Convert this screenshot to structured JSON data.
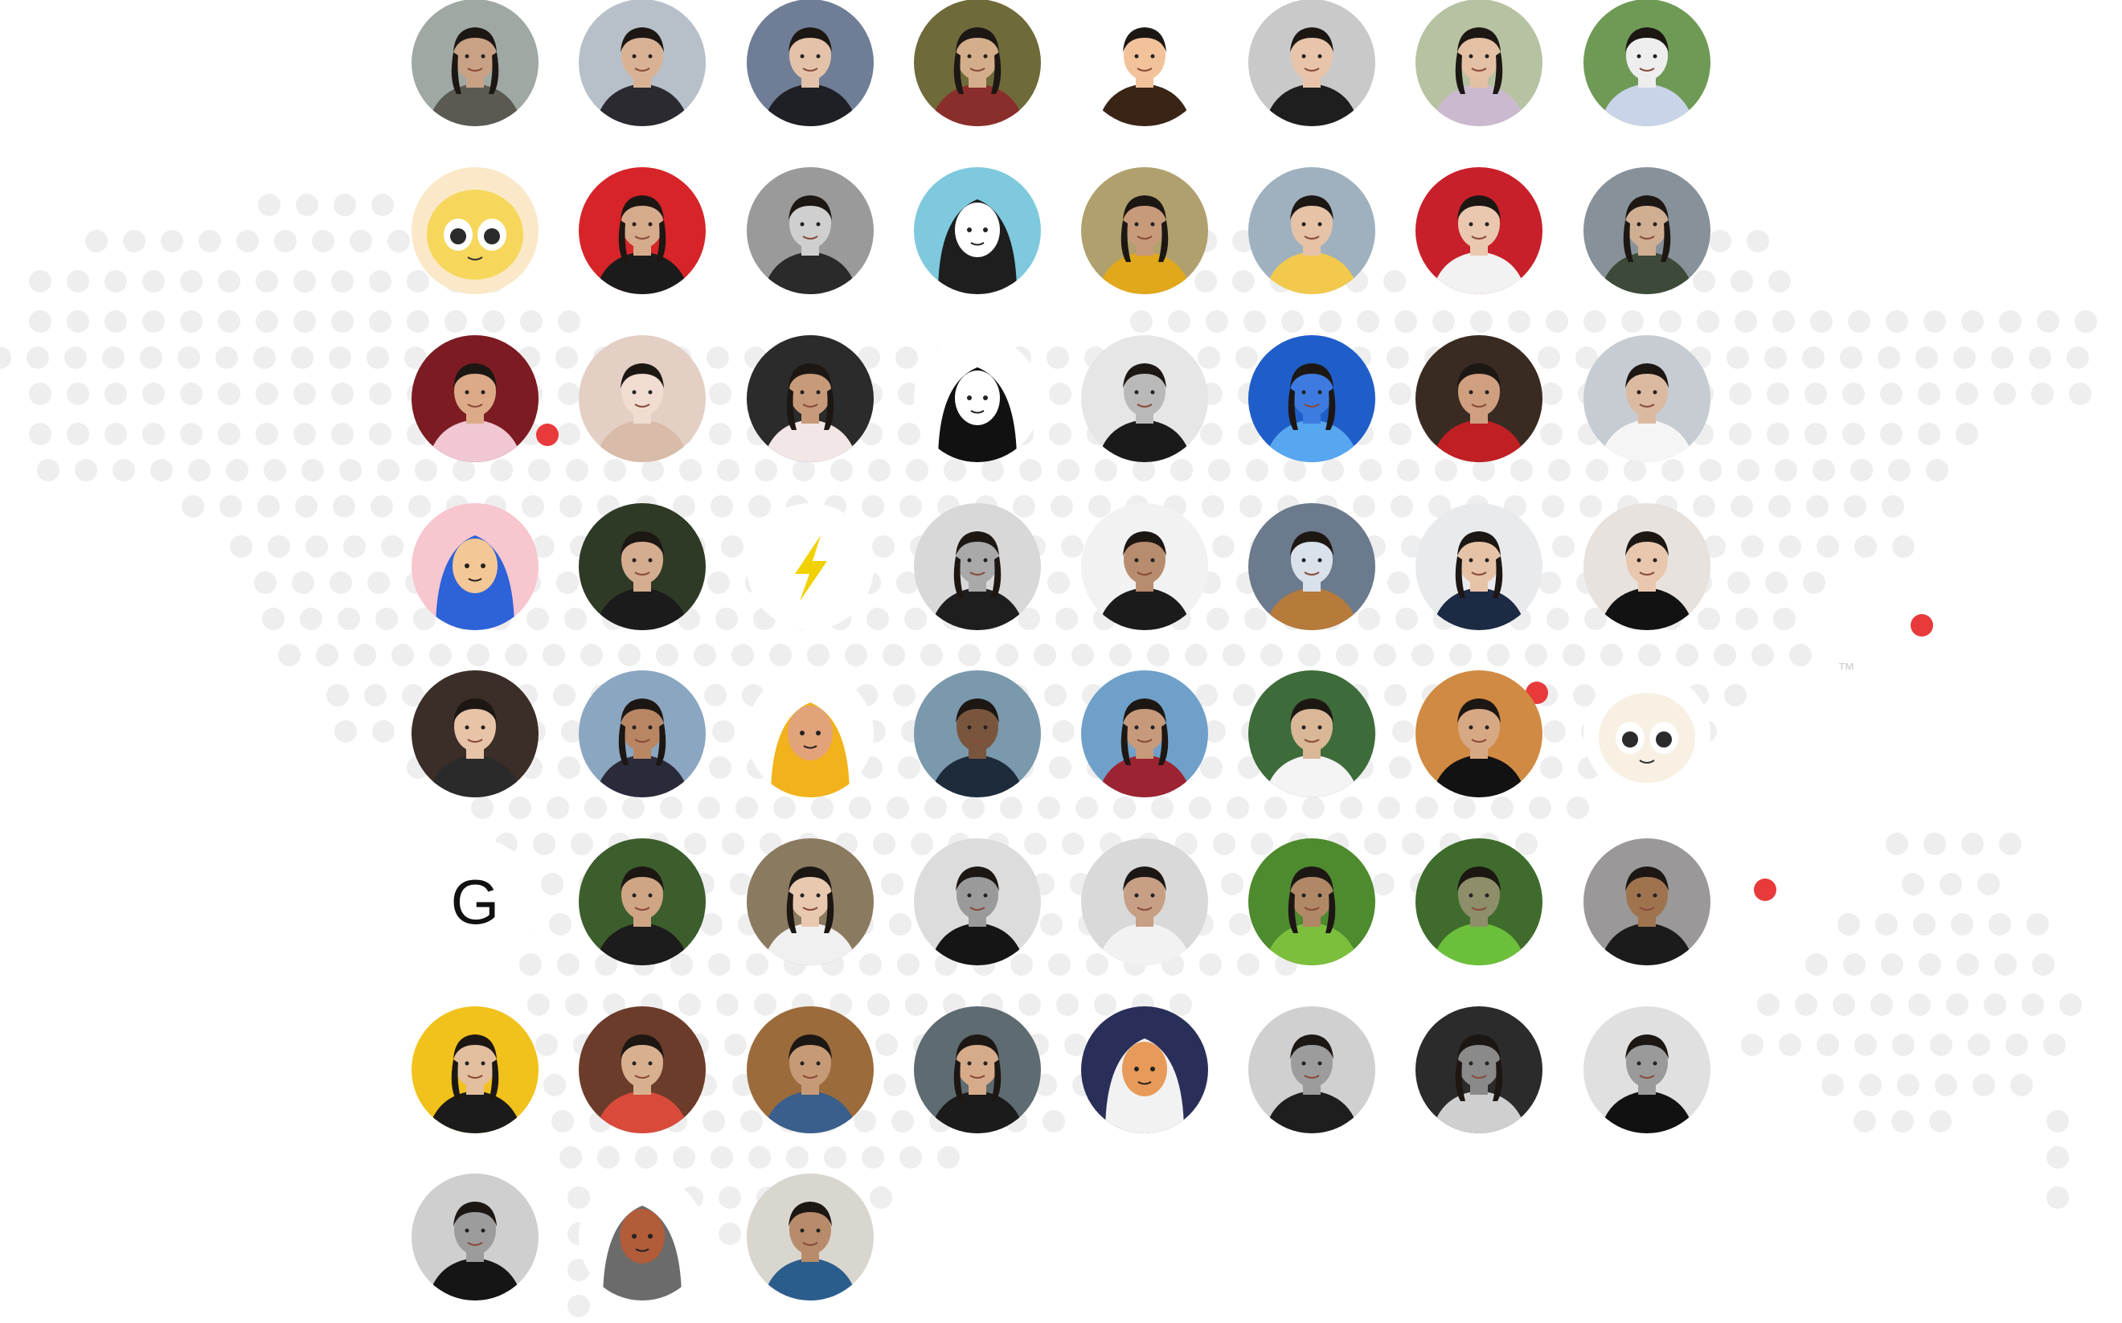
{
  "trademark": "™",
  "colors": {
    "map_dot": "#eeeeee",
    "highlight_dot": "#e83a3a"
  },
  "avatars": [
    {
      "name": "avatar-1",
      "style": "photo",
      "bg": "#9fa8a3",
      "fg": "#5a5a52",
      "skin": "#c9a286"
    },
    {
      "name": "avatar-2",
      "style": "photo",
      "bg": "#b7c0c8",
      "fg": "#2a2a30",
      "skin": "#d9b296"
    },
    {
      "name": "avatar-3",
      "style": "photo",
      "bg": "#6f7e96",
      "fg": "#1f1f26",
      "skin": "#e3c2a9"
    },
    {
      "name": "avatar-4",
      "style": "photo",
      "bg": "#6e6a3a",
      "fg": "#8a2e2b",
      "skin": "#d4ae8a"
    },
    {
      "name": "avatar-5",
      "style": "memoji",
      "bg": "#ffffff",
      "fg": "#3a2416",
      "skin": "#f2c29b"
    },
    {
      "name": "avatar-6",
      "style": "photo",
      "bg": "#c9c9c9",
      "fg": "#1e1e1e",
      "skin": "#e8c4aa"
    },
    {
      "name": "avatar-7",
      "style": "photo",
      "bg": "#b7c2a2",
      "fg": "#cbb9cf",
      "skin": "#e4c0a5"
    },
    {
      "name": "avatar-8",
      "style": "photo",
      "bg": "#6f9a56",
      "fg": "#c9d4e8",
      "skin": "#eeeeee"
    },
    {
      "name": "avatar-9",
      "style": "cartoon",
      "bg": "#fbe8c8",
      "fg": "#f6d75b",
      "skin": "#2b2b2b"
    },
    {
      "name": "avatar-10",
      "style": "photo",
      "bg": "#d62429",
      "fg": "#1b1b1b",
      "skin": "#d6ab8c"
    },
    {
      "name": "avatar-11",
      "style": "photo",
      "bg": "#9a9a9a",
      "fg": "#2a2a2a",
      "skin": "#cfcfcf"
    },
    {
      "name": "avatar-12",
      "style": "illustration",
      "bg": "#7ec9dd",
      "fg": "#1e1e1e",
      "skin": "#ffffff"
    },
    {
      "name": "avatar-13",
      "style": "photo",
      "bg": "#b0a06d",
      "fg": "#e0a81a",
      "skin": "#c79a7a"
    },
    {
      "name": "avatar-14",
      "style": "photo",
      "bg": "#9fb1bf",
      "fg": "#f2c94c",
      "skin": "#e6c2a6"
    },
    {
      "name": "avatar-15",
      "style": "photo",
      "bg": "#c8202a",
      "fg": "#f2f2f2",
      "skin": "#e9c8af"
    },
    {
      "name": "avatar-16",
      "style": "photo",
      "bg": "#87919a",
      "fg": "#3d4a3a",
      "skin": "#cfae92"
    },
    {
      "name": "avatar-17",
      "style": "photo",
      "bg": "#7c1b22",
      "fg": "#f0c7d3",
      "skin": "#dcaa88"
    },
    {
      "name": "avatar-18",
      "style": "photo",
      "bg": "#e4cfc4",
      "fg": "#d8bba8",
      "skin": "#f0dcd0"
    },
    {
      "name": "avatar-19",
      "style": "photo",
      "bg": "#2b2b2b",
      "fg": "#f3e6e6",
      "skin": "#c79a7a"
    },
    {
      "name": "avatar-20",
      "style": "illustration",
      "bg": "#ffffff",
      "fg": "#111111",
      "skin": "#ffffff"
    },
    {
      "name": "avatar-21",
      "style": "photo",
      "bg": "#e6e6e6",
      "fg": "#1a1a1a",
      "skin": "#b9b9b9"
    },
    {
      "name": "avatar-22",
      "style": "photo",
      "bg": "#1f5ec8",
      "fg": "#56a6f0",
      "skin": "#3d7be0"
    },
    {
      "name": "avatar-23",
      "style": "photo",
      "bg": "#3a2b22",
      "fg": "#c01f24",
      "skin": "#cf9f80"
    },
    {
      "name": "avatar-24",
      "style": "photo",
      "bg": "#c7ccd3",
      "fg": "#f5f5f5",
      "skin": "#dcbaa1"
    },
    {
      "name": "avatar-25",
      "style": "illustration",
      "bg": "#f7c6cf",
      "fg": "#2e62d8",
      "skin": "#f4c896"
    },
    {
      "name": "avatar-26",
      "style": "photo",
      "bg": "#2f3a26",
      "fg": "#1b1b1b",
      "skin": "#d4ac90"
    },
    {
      "name": "avatar-27",
      "style": "bolt",
      "bg": "#ffffff",
      "fg": "#f2d100",
      "skin": "#ffffff"
    },
    {
      "name": "avatar-28",
      "style": "photo",
      "bg": "#d8d8d8",
      "fg": "#1e1e1e",
      "skin": "#a9a9a9"
    },
    {
      "name": "avatar-29",
      "style": "photo",
      "bg": "#f2f2f2",
      "fg": "#1b1b1b",
      "skin": "#b88c6e"
    },
    {
      "name": "avatar-30",
      "style": "photo",
      "bg": "#6b7a8c",
      "fg": "#b67a3a",
      "skin": "#d9e1ea"
    },
    {
      "name": "avatar-31",
      "style": "photo",
      "bg": "#e9eaec",
      "fg": "#1d2a44",
      "skin": "#e6c3a7"
    },
    {
      "name": "avatar-32",
      "style": "photo",
      "bg": "#e7e2dd",
      "fg": "#121212",
      "skin": "#e9c7ae"
    },
    {
      "name": "avatar-33",
      "style": "photo",
      "bg": "#3b2d27",
      "fg": "#2a2a2a",
      "skin": "#e7c3a8"
    },
    {
      "name": "avatar-34",
      "style": "photo",
      "bg": "#8ba6c0",
      "fg": "#2a2a3a",
      "skin": "#b98664"
    },
    {
      "name": "avatar-35",
      "style": "illustration",
      "bg": "#ffffff",
      "fg": "#f2b21b",
      "skin": "#e2a27a"
    },
    {
      "name": "avatar-36",
      "style": "photo",
      "bg": "#7b99ad",
      "fg": "#1d2b3a",
      "skin": "#7a553e"
    },
    {
      "name": "avatar-37",
      "style": "photo",
      "bg": "#6fa0c9",
      "fg": "#9c2331",
      "skin": "#c69a7b"
    },
    {
      "name": "avatar-38",
      "style": "photo",
      "bg": "#3d6b3a",
      "fg": "#f4f4f4",
      "skin": "#d9b797"
    },
    {
      "name": "avatar-39",
      "style": "photo",
      "bg": "#d18a43",
      "fg": "#121212",
      "skin": "#d6a884"
    },
    {
      "name": "avatar-40",
      "style": "cartoon",
      "bg": "#ffffff",
      "fg": "#f7f0e3",
      "skin": "#2b2b2b"
    },
    {
      "name": "avatar-41",
      "style": "letter",
      "bg": "#ffffff",
      "fg": "#111111",
      "skin": "#ffffff",
      "letter": "G"
    },
    {
      "name": "avatar-42",
      "style": "photo",
      "bg": "#3c5d2c",
      "fg": "#1c1c1c",
      "skin": "#cfa584"
    },
    {
      "name": "avatar-43",
      "style": "photo",
      "bg": "#8a7a60",
      "fg": "#f0f0f0",
      "skin": "#e8c9b0"
    },
    {
      "name": "avatar-44",
      "style": "photo",
      "bg": "#dcdcdc",
      "fg": "#151515",
      "skin": "#9a9a9a"
    },
    {
      "name": "avatar-45",
      "style": "photo",
      "bg": "#d9d9d9",
      "fg": "#f2f2f2",
      "skin": "#c79f84"
    },
    {
      "name": "avatar-46",
      "style": "photo",
      "bg": "#4e8a2e",
      "fg": "#7cbf3c",
      "skin": "#b08866"
    },
    {
      "name": "avatar-47",
      "style": "photo",
      "bg": "#3f6c2c",
      "fg": "#6cbf3a",
      "skin": "#8e8e6a"
    },
    {
      "name": "avatar-48",
      "style": "photo",
      "bg": "#9a9898",
      "fg": "#1b1b1b",
      "skin": "#a0734f"
    },
    {
      "name": "avatar-49",
      "style": "photo",
      "bg": "#f2c21c",
      "fg": "#1b1b1b",
      "skin": "#e3be9f"
    },
    {
      "name": "avatar-50",
      "style": "photo",
      "bg": "#6b3c2a",
      "fg": "#d94a3b",
      "skin": "#d9b08f"
    },
    {
      "name": "avatar-51",
      "style": "photo",
      "bg": "#9b6b3c",
      "fg": "#3a5f8c",
      "skin": "#c79a77"
    },
    {
      "name": "avatar-52",
      "style": "photo",
      "bg": "#5e6b70",
      "fg": "#1b1b1b",
      "skin": "#d6ab8a"
    },
    {
      "name": "avatar-53",
      "style": "illustration",
      "bg": "#2a2f5a",
      "fg": "#f2f2f2",
      "skin": "#e89a5a"
    },
    {
      "name": "avatar-54",
      "style": "photo",
      "bg": "#d0d0d0",
      "fg": "#1e1e1e",
      "skin": "#9c9c9c"
    },
    {
      "name": "avatar-55",
      "style": "photo",
      "bg": "#2b2b2b",
      "fg": "#cfcfcf",
      "skin": "#8a8a8a"
    },
    {
      "name": "avatar-56",
      "style": "photo",
      "bg": "#e0e0e0",
      "fg": "#111111",
      "skin": "#9a9a9a"
    },
    {
      "name": "avatar-57",
      "style": "photo",
      "bg": "#cfcfcf",
      "fg": "#151515",
      "skin": "#9c9c9c"
    },
    {
      "name": "avatar-58",
      "style": "illustration",
      "bg": "#ffffff",
      "fg": "#6b6b6b",
      "skin": "#b25c3a"
    },
    {
      "name": "avatar-59",
      "style": "photo",
      "bg": "#d9d6cf",
      "fg": "#2b5d8c",
      "skin": "#b88c6a"
    }
  ]
}
